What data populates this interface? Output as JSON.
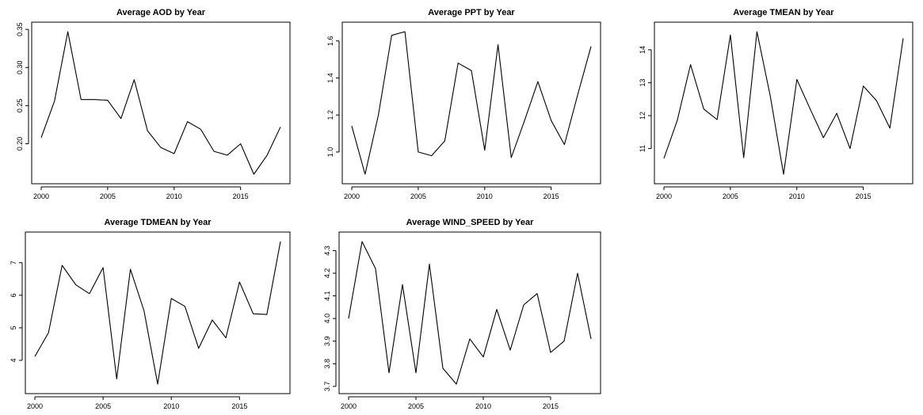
{
  "chart_data": [
    {
      "type": "line",
      "title": "Average AOD by Year",
      "xlabel": "",
      "ylabel": "",
      "x": [
        2000,
        2001,
        2002,
        2003,
        2004,
        2005,
        2006,
        2007,
        2008,
        2009,
        2010,
        2011,
        2012,
        2013,
        2014,
        2015,
        2016,
        2017,
        2018
      ],
      "series": [
        {
          "values": [
            0.208,
            0.256,
            0.347,
            0.258,
            0.258,
            0.257,
            0.233,
            0.284,
            0.217,
            0.195,
            0.187,
            0.229,
            0.219,
            0.19,
            0.185,
            0.2,
            0.16,
            0.185,
            0.222
          ]
        }
      ],
      "xlim": [
        2000,
        2018
      ],
      "ylim": [
        0.16,
        0.347
      ],
      "xticks": [
        2000,
        2005,
        2010,
        2015
      ],
      "xtick_labels": [
        "2000",
        "2005",
        "2010",
        "2015"
      ],
      "yticks": [
        0.2,
        0.25,
        0.3,
        0.35
      ],
      "ytick_labels": [
        "0.20",
        "0.25",
        "0.30",
        "0.35"
      ],
      "grid": false
    },
    {
      "type": "line",
      "title": "Average PPT by Year",
      "xlabel": "",
      "ylabel": "",
      "x": [
        2000,
        2001,
        2002,
        2003,
        2004,
        2005,
        2006,
        2007,
        2008,
        2009,
        2010,
        2011,
        2012,
        2013,
        2014,
        2015,
        2016,
        2017,
        2018
      ],
      "series": [
        {
          "values": [
            1.14,
            0.88,
            1.2,
            1.63,
            1.65,
            1.0,
            0.98,
            1.06,
            1.48,
            1.44,
            1.01,
            1.58,
            0.97,
            1.17,
            1.38,
            1.17,
            1.04,
            1.31,
            1.57
          ]
        }
      ],
      "xlim": [
        2000,
        2018
      ],
      "ylim": [
        0.88,
        1.65
      ],
      "xticks": [
        2000,
        2005,
        2010,
        2015
      ],
      "xtick_labels": [
        "2000",
        "2005",
        "2010",
        "2015"
      ],
      "yticks": [
        1.0,
        1.2,
        1.4,
        1.6
      ],
      "ytick_labels": [
        "1.0",
        "1.2",
        "1.4",
        "1.6"
      ],
      "grid": false
    },
    {
      "type": "line",
      "title": "Average TMEAN by Year",
      "xlabel": "",
      "ylabel": "",
      "x": [
        2000,
        2001,
        2002,
        2003,
        2004,
        2005,
        2006,
        2007,
        2008,
        2009,
        2010,
        2011,
        2012,
        2013,
        2014,
        2015,
        2016,
        2017,
        2018
      ],
      "series": [
        {
          "values": [
            10.7,
            11.85,
            13.55,
            12.2,
            11.88,
            14.45,
            10.72,
            14.55,
            12.6,
            10.22,
            13.1,
            12.2,
            11.33,
            12.07,
            11.0,
            12.9,
            12.45,
            11.62,
            14.35
          ]
        }
      ],
      "xlim": [
        2000,
        2018
      ],
      "ylim": [
        10.22,
        14.55
      ],
      "xticks": [
        2000,
        2005,
        2010,
        2015
      ],
      "xtick_labels": [
        "2000",
        "2005",
        "2010",
        "2015"
      ],
      "yticks": [
        11,
        12,
        13,
        14
      ],
      "ytick_labels": [
        "11",
        "12",
        "13",
        "14"
      ],
      "grid": false
    },
    {
      "type": "line",
      "title": "Average TDMEAN by Year",
      "xlabel": "",
      "ylabel": "",
      "x": [
        2000,
        2001,
        2002,
        2003,
        2004,
        2005,
        2006,
        2007,
        2008,
        2009,
        2010,
        2011,
        2012,
        2013,
        2014,
        2015,
        2016,
        2017,
        2018
      ],
      "series": [
        {
          "values": [
            4.12,
            4.85,
            6.92,
            6.32,
            6.05,
            6.85,
            3.43,
            6.8,
            5.52,
            3.27,
            5.9,
            5.66,
            4.37,
            5.24,
            4.69,
            6.41,
            5.43,
            5.41,
            7.65
          ]
        }
      ],
      "xlim": [
        2000,
        2018
      ],
      "ylim": [
        3.27,
        7.65
      ],
      "xticks": [
        2000,
        2005,
        2010,
        2015
      ],
      "xtick_labels": [
        "2000",
        "2005",
        "2010",
        "2015"
      ],
      "yticks": [
        4,
        5,
        6,
        7
      ],
      "ytick_labels": [
        "4",
        "5",
        "6",
        "7"
      ],
      "grid": false
    },
    {
      "type": "line",
      "title": "Average WIND_SPEED by Year",
      "xlabel": "",
      "ylabel": "",
      "x": [
        2000,
        2001,
        2002,
        2003,
        2004,
        2005,
        2006,
        2007,
        2008,
        2009,
        2010,
        2011,
        2012,
        2013,
        2014,
        2015,
        2016,
        2017,
        2018
      ],
      "series": [
        {
          "values": [
            4.0,
            4.34,
            4.22,
            3.76,
            4.15,
            3.76,
            4.24,
            3.78,
            3.71,
            3.91,
            3.83,
            4.04,
            3.86,
            4.06,
            4.11,
            3.85,
            3.9,
            4.2,
            3.91
          ]
        }
      ],
      "xlim": [
        2000,
        2018
      ],
      "ylim": [
        3.71,
        4.34
      ],
      "xticks": [
        2000,
        2005,
        2010,
        2015
      ],
      "xtick_labels": [
        "2000",
        "2005",
        "2010",
        "2015"
      ],
      "yticks": [
        3.7,
        3.8,
        3.9,
        4.0,
        4.1,
        4.2,
        4.3
      ],
      "ytick_labels": [
        "3.7",
        "3.8",
        "3.9",
        "4.0",
        "4.1",
        "4.2",
        "4.3"
      ],
      "grid": false
    }
  ]
}
